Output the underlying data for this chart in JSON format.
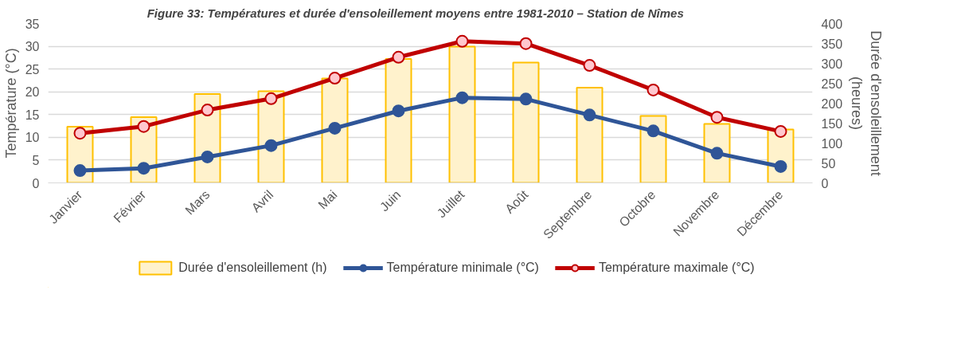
{
  "chart_data": {
    "type": "bar",
    "title": "Figure 33:          Températures et durée d'ensoleillement moyens entre 1981-2010 – Station de Nîmes",
    "ylabel": "Température (°C)",
    "y2label": "Durée d'ensoleillement (heures)",
    "categories": [
      "Janvier",
      "Février",
      "Mars",
      "Avril",
      "Mai",
      "Juin",
      "Juillet",
      "Août",
      "Septembre",
      "Octobre",
      "Novembre",
      "Décembre"
    ],
    "ylim": [
      0,
      35
    ],
    "yticks": [
      0,
      5,
      10,
      15,
      20,
      25,
      30,
      35
    ],
    "y2lim": [
      0,
      400
    ],
    "y2ticks": [
      0,
      50,
      100,
      150,
      200,
      250,
      300,
      350,
      400
    ],
    "grid": "y",
    "legend": "bottom",
    "series": [
      {
        "name": "Durée d'ensoleillement (h)",
        "type": "bar",
        "axis": "y2",
        "color": "#fff2cc",
        "values": [
          141,
          165,
          223,
          230,
          262,
          311,
          342,
          302,
          239,
          168,
          148,
          134
        ]
      },
      {
        "name": "Température minimale (°C)",
        "type": "line",
        "color": "#2f5597",
        "marker": "circle",
        "values": [
          2.7,
          3.2,
          5.7,
          8.2,
          12.0,
          15.8,
          18.7,
          18.4,
          14.9,
          11.4,
          6.5,
          3.6
        ]
      },
      {
        "name": "Température maximale (°C)",
        "type": "line",
        "color": "#c00000",
        "marker": "circle",
        "values": [
          10.9,
          12.4,
          16.0,
          18.5,
          23.0,
          27.6,
          31.1,
          30.6,
          25.8,
          20.4,
          14.4,
          11.3
        ]
      }
    ]
  }
}
